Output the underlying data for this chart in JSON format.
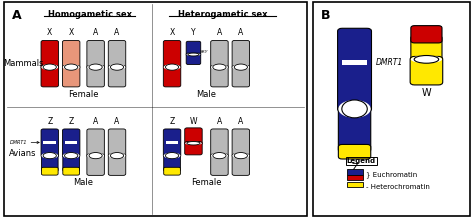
{
  "title_A": "A",
  "title_B": "B",
  "homogametic_label": "Homogametic sex",
  "heterogametic_label": "Heterogametic sex",
  "mammals_label": "Mammals",
  "avians_label": "Avians",
  "female_label": "Female",
  "male_label": "Male",
  "legend_title": "Legend",
  "euchromatin_label": "Euchromatin",
  "heterochromatin_label": "Heterochromatin",
  "DMRT1_label": "DMRT1",
  "SRY_label": "SRY",
  "color_red": "#CC0000",
  "color_salmon": "#E8967A",
  "color_gray": "#B8B8B8",
  "color_blue": "#1A1F8C",
  "color_yellow": "#FFE800",
  "color_white": "#FFFFFF",
  "background": "#FFFFFF"
}
